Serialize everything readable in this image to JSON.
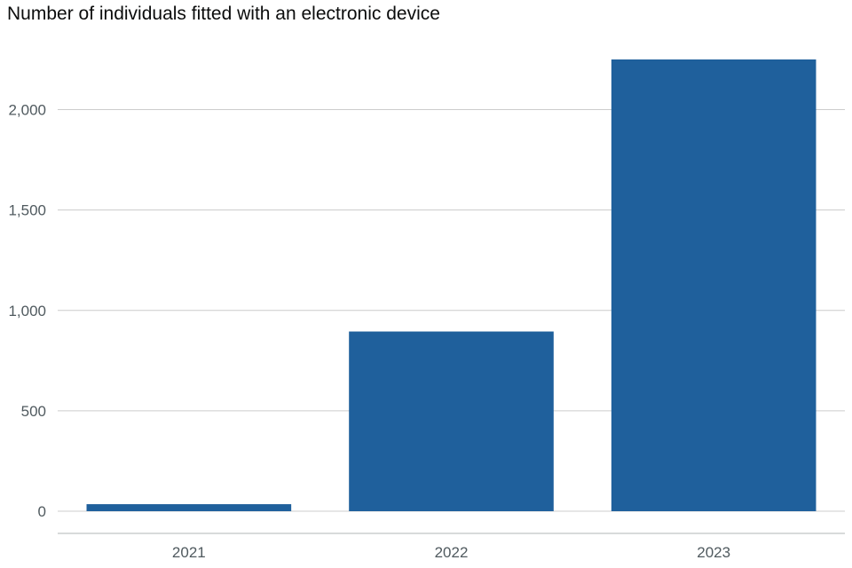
{
  "chart_data": {
    "type": "bar",
    "title": "Number of individuals fitted with an electronic device",
    "categories": [
      "2021",
      "2022",
      "2023"
    ],
    "values": [
      35,
      895,
      2250
    ],
    "xlabel": "",
    "ylabel": "",
    "ylim": [
      0,
      2250
    ],
    "yticks": [
      0,
      500,
      1000,
      1500,
      2000
    ],
    "ytick_labels": [
      "0",
      "500",
      "1,000",
      "1,500",
      "2,000"
    ],
    "grid": true,
    "legend": "none",
    "colors": {
      "bar": "#1f609c",
      "grid": "#cccccc",
      "axis": "#b1b4b6",
      "tick_text": "#505a5f",
      "title_text": "#0b0c0c"
    }
  }
}
